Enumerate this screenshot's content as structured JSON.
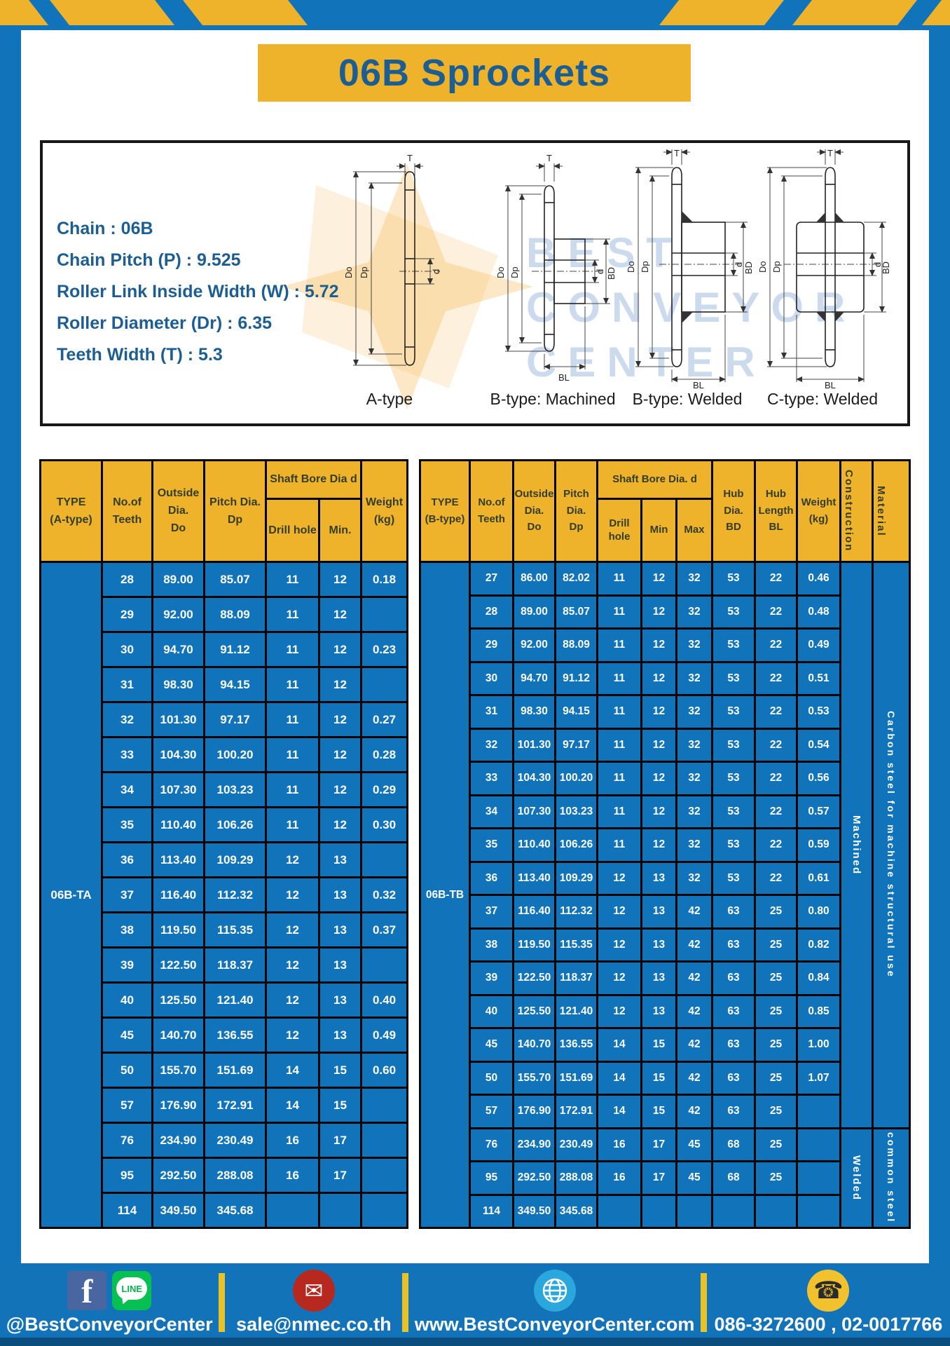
{
  "header": {
    "title": "06B Sprockets"
  },
  "specs": {
    "lines": [
      "Chain  : 06B",
      "Chain Pitch (P)  :  9.525",
      "Roller Link Inside Width (W)  :  5.72",
      "Roller Diameter (Dr)  : 6.35",
      "Teeth Width (T)  :  5.3"
    ]
  },
  "diagrams": {
    "labels": {
      "t": "T",
      "dia_o": "Do",
      "dia_p": "Dp",
      "d": "d",
      "bd": "BD",
      "bl": "BL"
    },
    "watermark": [
      "BEST",
      "CONVEYOR",
      "CENTER"
    ],
    "items": [
      {
        "caption": "A-type"
      },
      {
        "caption": "B-type: Machined"
      },
      {
        "caption": "B-type: Welded"
      },
      {
        "caption": "C-type: Welded"
      }
    ]
  },
  "tables": {
    "left": {
      "headers": {
        "type": [
          "TYPE",
          "(A-type)"
        ],
        "teeth": [
          "No.of",
          "Teeth"
        ],
        "outside": [
          "Outside",
          "Dia.",
          "Do"
        ],
        "pitch": [
          "Pitch Dia.",
          "Dp"
        ],
        "shaft_bore": "Shaft Bore Dia d",
        "drill": "Drill hole",
        "min": "Min.",
        "weight": [
          "Weight",
          "(kg)"
        ]
      },
      "type_label": "06B-TA",
      "rows": [
        [
          "28",
          "89.00",
          "85.07",
          "11",
          "12",
          "0.18"
        ],
        [
          "29",
          "92.00",
          "88.09",
          "11",
          "12",
          ""
        ],
        [
          "30",
          "94.70",
          "91.12",
          "11",
          "12",
          "0.23"
        ],
        [
          "31",
          "98.30",
          "94.15",
          "11",
          "12",
          ""
        ],
        [
          "32",
          "101.30",
          "97.17",
          "11",
          "12",
          "0.27"
        ],
        [
          "33",
          "104.30",
          "100.20",
          "11",
          "12",
          "0.28"
        ],
        [
          "34",
          "107.30",
          "103.23",
          "11",
          "12",
          "0.29"
        ],
        [
          "35",
          "110.40",
          "106.26",
          "11",
          "12",
          "0.30"
        ],
        [
          "36",
          "113.40",
          "109.29",
          "12",
          "13",
          ""
        ],
        [
          "37",
          "116.40",
          "112.32",
          "12",
          "13",
          "0.32"
        ],
        [
          "38",
          "119.50",
          "115.35",
          "12",
          "13",
          "0.37"
        ],
        [
          "39",
          "122.50",
          "118.37",
          "12",
          "13",
          ""
        ],
        [
          "40",
          "125.50",
          "121.40",
          "12",
          "13",
          "0.40"
        ],
        [
          "45",
          "140.70",
          "136.55",
          "12",
          "13",
          "0.49"
        ],
        [
          "50",
          "155.70",
          "151.69",
          "14",
          "15",
          "0.60"
        ],
        [
          "57",
          "176.90",
          "172.91",
          "14",
          "15",
          ""
        ],
        [
          "76",
          "234.90",
          "230.49",
          "16",
          "17",
          ""
        ],
        [
          "95",
          "292.50",
          "288.08",
          "16",
          "17",
          ""
        ],
        [
          "114",
          "349.50",
          "345.68",
          "",
          "",
          ""
        ]
      ],
      "spans": []
    },
    "right": {
      "headers": {
        "type": [
          "TYPE",
          "(B-type)"
        ],
        "teeth": [
          "No.of",
          "Teeth"
        ],
        "outside": [
          "Outside",
          "Dia.",
          "Do"
        ],
        "pitch": [
          "Pitch",
          "Dia.",
          "Dp"
        ],
        "shaft_bore": "Shaft Bore Dia. d",
        "drill": "Drill hole",
        "min": "Min",
        "max": "Max",
        "hub_dia": [
          "Hub",
          "Dia.",
          "BD"
        ],
        "hub_len": [
          "Hub",
          "Length",
          "BL"
        ],
        "weight": [
          "Weight",
          "(kg)"
        ],
        "construction": "Construction",
        "material": "Material"
      },
      "type_label": "06B-TB",
      "rows": [
        [
          "27",
          "86.00",
          "82.02",
          "11",
          "12",
          "32",
          "53",
          "22",
          "0.46"
        ],
        [
          "28",
          "89.00",
          "85.07",
          "11",
          "12",
          "32",
          "53",
          "22",
          "0.48"
        ],
        [
          "29",
          "92.00",
          "88.09",
          "11",
          "12",
          "32",
          "53",
          "22",
          "0.49"
        ],
        [
          "30",
          "94.70",
          "91.12",
          "11",
          "12",
          "32",
          "53",
          "22",
          "0.51"
        ],
        [
          "31",
          "98.30",
          "94.15",
          "11",
          "12",
          "32",
          "53",
          "22",
          "0.53"
        ],
        [
          "32",
          "101.30",
          "97.17",
          "11",
          "12",
          "32",
          "53",
          "22",
          "0.54"
        ],
        [
          "33",
          "104.30",
          "100.20",
          "11",
          "12",
          "32",
          "53",
          "22",
          "0.56"
        ],
        [
          "34",
          "107.30",
          "103.23",
          "11",
          "12",
          "32",
          "53",
          "22",
          "0.57"
        ],
        [
          "35",
          "110.40",
          "106.26",
          "11",
          "12",
          "32",
          "53",
          "22",
          "0.59"
        ],
        [
          "36",
          "113.40",
          "109.29",
          "12",
          "13",
          "32",
          "53",
          "22",
          "0.61"
        ],
        [
          "37",
          "116.40",
          "112.32",
          "12",
          "13",
          "42",
          "63",
          "25",
          "0.80"
        ],
        [
          "38",
          "119.50",
          "115.35",
          "12",
          "13",
          "42",
          "63",
          "25",
          "0.82"
        ],
        [
          "39",
          "122.50",
          "118.37",
          "12",
          "13",
          "42",
          "63",
          "25",
          "0.84"
        ],
        [
          "40",
          "125.50",
          "121.40",
          "12",
          "13",
          "42",
          "63",
          "25",
          "0.85"
        ],
        [
          "45",
          "140.70",
          "136.55",
          "14",
          "15",
          "42",
          "63",
          "25",
          "1.00"
        ],
        [
          "50",
          "155.70",
          "151.69",
          "14",
          "15",
          "42",
          "63",
          "25",
          "1.07"
        ],
        [
          "57",
          "176.90",
          "172.91",
          "14",
          "15",
          "42",
          "63",
          "25",
          ""
        ],
        [
          "76",
          "234.90",
          "230.49",
          "16",
          "17",
          "45",
          "68",
          "25",
          ""
        ],
        [
          "95",
          "292.50",
          "288.08",
          "16",
          "17",
          "45",
          "68",
          "25",
          ""
        ],
        [
          "114",
          "349.50",
          "345.68",
          "",
          "",
          "",
          "",
          "",
          ""
        ]
      ],
      "spans": [
        {
          "name": "construction-cell",
          "cls": "",
          "cells": [
            {
              "start": 0,
              "span": 17,
              "label": "Machined"
            },
            {
              "start": 17,
              "span": 3,
              "label": "Welded"
            }
          ]
        },
        {
          "name": "material-cell",
          "cls": "mat",
          "cells": [
            {
              "start": 0,
              "span": 17,
              "label": "Carbon steel for machine structural use"
            },
            {
              "start": 17,
              "span": 3,
              "label": "common steel"
            }
          ]
        }
      ]
    }
  },
  "footer": {
    "line_badge": "LINE",
    "items": [
      {
        "label": "@BestConveyorCenter"
      },
      {
        "label": "sale@nmec.co.th"
      },
      {
        "label": "www.BestConveyorCenter.com"
      },
      {
        "label": "086-3272600 , 02-0017766"
      }
    ]
  },
  "colors": {
    "page_blue": "#1174ba",
    "accent_yellow": "#efb32b",
    "title_blue": "#1d5e92",
    "cell_text": "#ffffff",
    "header_text": "#333d28",
    "footer_bottom": "#0c4d80"
  }
}
